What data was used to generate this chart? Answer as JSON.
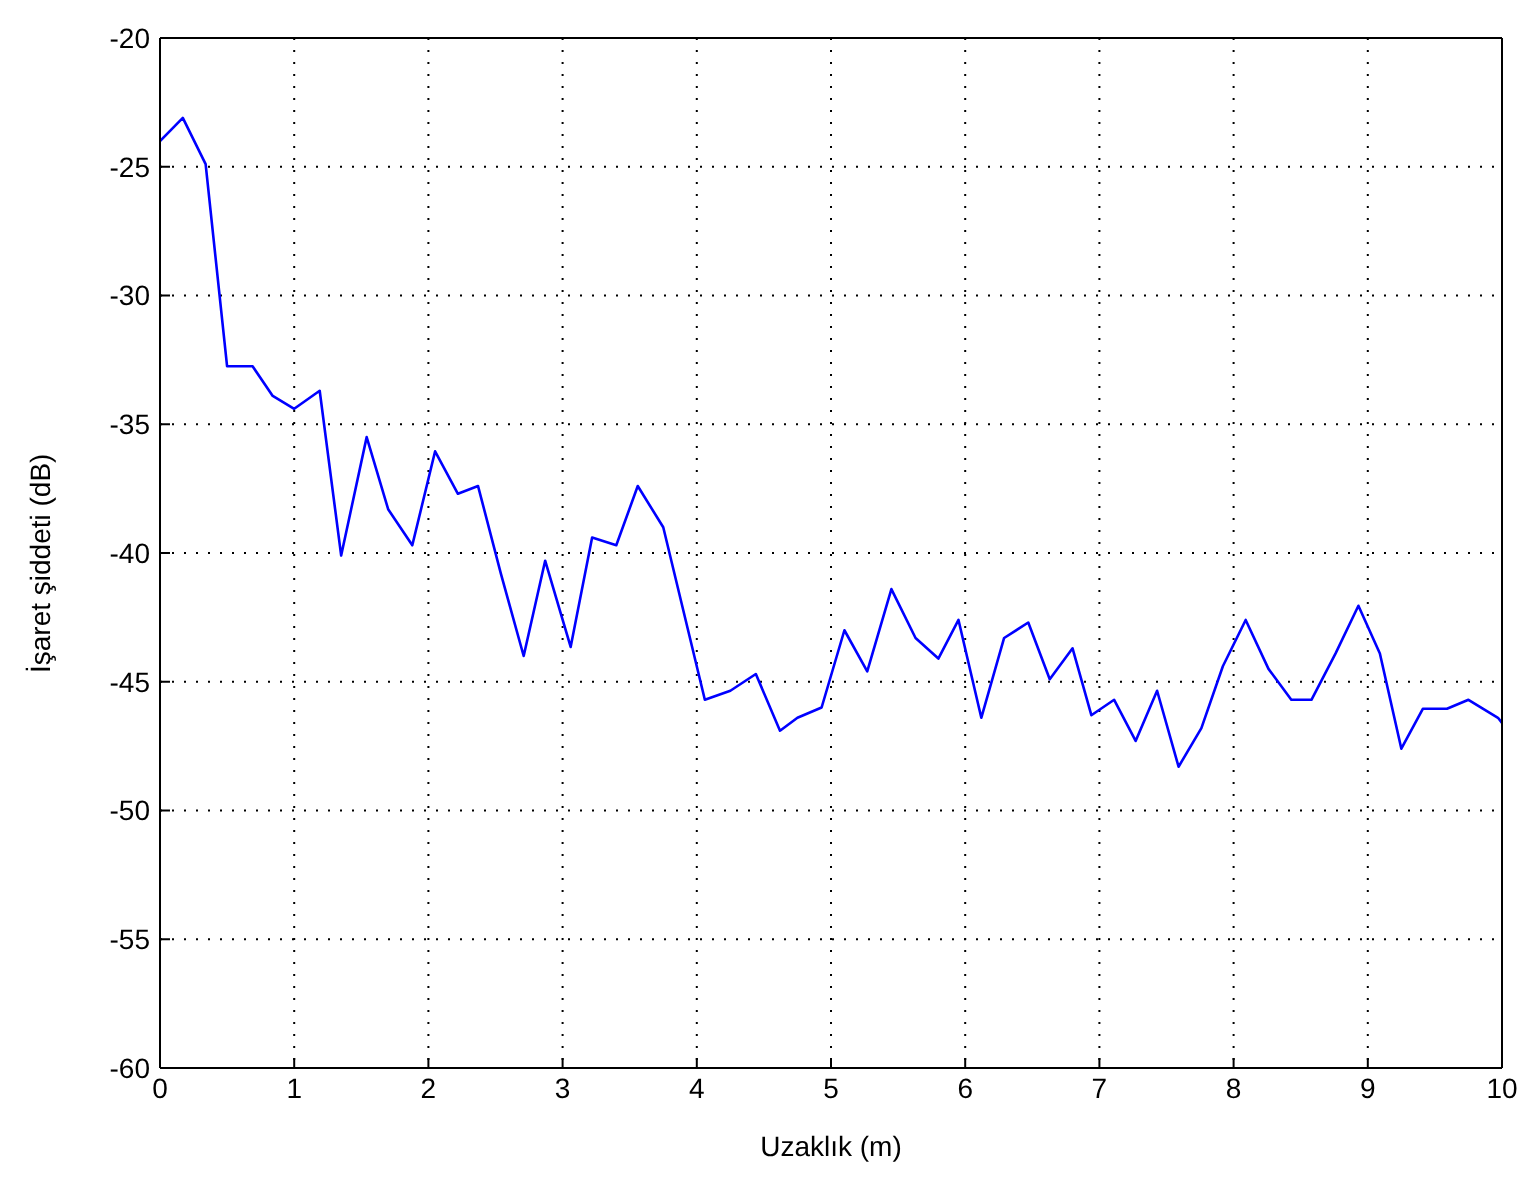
{
  "chart_data": {
    "type": "line",
    "xlabel": "Uzaklık (m)",
    "ylabel": "İşaret şiddeti (dB)",
    "x": [
      0,
      0.17,
      0.34,
      0.5,
      0.69,
      0.84,
      1.0,
      1.19,
      1.35,
      1.54,
      1.7,
      1.88,
      2.05,
      2.22,
      2.37,
      2.54,
      2.71,
      2.87,
      3.06,
      3.22,
      3.4,
      3.56,
      3.75,
      4.06,
      4.25,
      4.44,
      4.62,
      4.75,
      4.93,
      5.1,
      5.27,
      5.45,
      5.63,
      5.8,
      5.95,
      6.12,
      6.29,
      6.47,
      6.63,
      6.8,
      6.94,
      7.11,
      7.27,
      7.43,
      7.59,
      7.76,
      7.92,
      8.09,
      8.26,
      8.43,
      8.58,
      8.76,
      8.93,
      9.09,
      9.25,
      9.41,
      9.59,
      9.75,
      9.97,
      10
    ],
    "series": [
      {
        "color": "#0000ff",
        "values": [
          -24.0,
          -23.1,
          -24.9,
          -32.75,
          -32.75,
          -33.9,
          -34.4,
          -33.7,
          -40.1,
          -35.5,
          -38.3,
          -39.7,
          -36.05,
          -37.7,
          -37.4,
          -40.8,
          -44.0,
          -40.3,
          -43.65,
          -39.4,
          -39.7,
          -37.4,
          -39.0,
          -45.7,
          -45.35,
          -44.7,
          -46.9,
          -46.4,
          -46.0,
          -43.0,
          -44.6,
          -41.4,
          -43.3,
          -44.1,
          -42.6,
          -46.4,
          -43.3,
          -42.7,
          -44.9,
          -43.7,
          -46.3,
          -45.7,
          -47.3,
          -45.35,
          -48.3,
          -46.8,
          -44.4,
          -42.6,
          -44.5,
          -45.7,
          -45.7,
          -43.9,
          -42.05,
          -43.9,
          -47.6,
          -46.05,
          -46.05,
          -45.7,
          -46.4,
          -46.6
        ]
      }
    ],
    "xlim": [
      0,
      10
    ],
    "xticks": [
      0,
      1,
      2,
      3,
      4,
      5,
      6,
      7,
      8,
      9,
      10
    ],
    "ylim": [
      -60,
      -20
    ],
    "yticks": [
      -60,
      -55,
      -50,
      -45,
      -40,
      -35,
      -30,
      -25,
      -20
    ],
    "grid": true,
    "marker": "none",
    "line_style": "solid"
  }
}
